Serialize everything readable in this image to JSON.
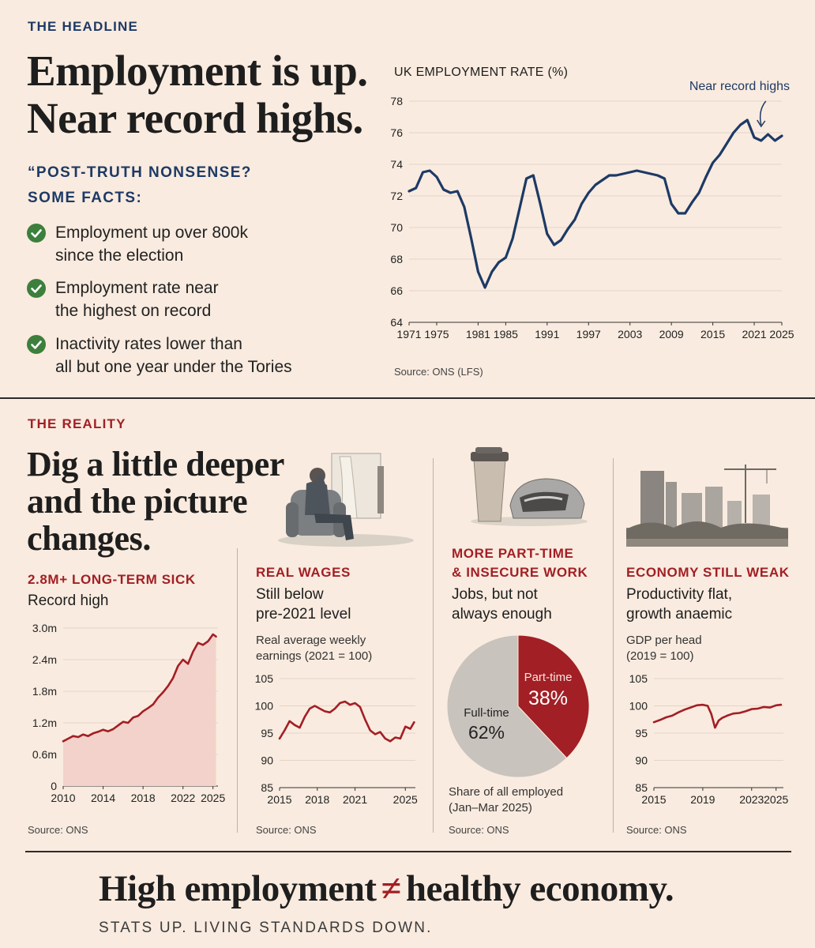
{
  "top": {
    "section_label": "THE HEADLINE",
    "headline_line1": "Employment is up.",
    "headline_line2": "Near record highs.",
    "question_line1": "“POST-TRUTH NONSENSE?",
    "question_line2": "SOME FACTS:",
    "facts": [
      {
        "line1": "Employment up over 800k",
        "line2": "since the election"
      },
      {
        "line1": "Employment rate near",
        "line2": "the highest on record"
      },
      {
        "line1": "Inactivity rates lower than",
        "line2": "all but one year under the Tories"
      }
    ]
  },
  "bottom": {
    "section_label": "THE REALITY",
    "headline_line1": "Dig a little deeper",
    "headline_line2": "and the picture",
    "headline_line3": "changes.",
    "panels": {
      "sick": {
        "title": "2.8M+ LONG-TERM SICK",
        "subtitle": "Record high",
        "source": "Source: ONS"
      },
      "wages": {
        "title": "REAL WAGES",
        "sub1": "Still below",
        "sub2": "pre-2021 level",
        "note1": "Real average weekly",
        "note2": "earnings (2021 = 100)",
        "source": "Source: ONS"
      },
      "parttime": {
        "title1": "MORE PART-TIME",
        "title2": "& INSECURE WORK",
        "sub1": "Jobs, but not",
        "sub2": "always enough",
        "note1": "Share of all employed",
        "note2": "(Jan–Mar 2025)",
        "source": "Source: ONS"
      },
      "economy": {
        "title": "ECONOMY STILL WEAK",
        "sub1": "Productivity flat,",
        "sub2": "growth anaemic",
        "note1": "GDP per head",
        "note2": "(2019 = 100)",
        "source": "Source: ONS"
      }
    }
  },
  "footer": {
    "left": "High employment",
    "symbol": "≠",
    "right": "healthy economy.",
    "tagline": "STATS UP. LIVING STANDARDS DOWN."
  },
  "colors": {
    "navy": "#1d3a66",
    "red": "#a21f25",
    "green": "#3d7f3c",
    "background": "#f9ebdf"
  },
  "chart_data": [
    {
      "id": "employment",
      "type": "line",
      "title": "UK EMPLOYMENT RATE (%)",
      "annotation": "Near record highs",
      "source": "Source: ONS (LFS)",
      "xlim": [
        1971,
        2025
      ],
      "ylim": [
        64,
        78
      ],
      "x_ticks": [
        1971,
        1975,
        1981,
        1985,
        1991,
        1997,
        2003,
        2009,
        2015,
        2021,
        2025
      ],
      "y_ticks": [
        64,
        66,
        68,
        70,
        72,
        74,
        76,
        78
      ],
      "color": "#1d3a66",
      "x": [
        1971,
        1972,
        1973,
        1974,
        1975,
        1976,
        1977,
        1978,
        1979,
        1980,
        1981,
        1982,
        1983,
        1984,
        1985,
        1986,
        1987,
        1988,
        1989,
        1990,
        1991,
        1992,
        1993,
        1994,
        1995,
        1996,
        1997,
        1998,
        1999,
        2000,
        2001,
        2002,
        2003,
        2004,
        2005,
        2006,
        2007,
        2008,
        2009,
        2010,
        2011,
        2012,
        2013,
        2014,
        2015,
        2016,
        2017,
        2018,
        2019,
        2020,
        2021,
        2022,
        2023,
        2024,
        2025
      ],
      "y": [
        72.3,
        72.5,
        73.5,
        73.6,
        73.2,
        72.4,
        72.2,
        72.3,
        71.3,
        69.3,
        67.2,
        66.2,
        67.2,
        67.8,
        68.1,
        69.3,
        71.2,
        73.1,
        73.3,
        71.5,
        69.6,
        68.9,
        69.2,
        69.9,
        70.5,
        71.5,
        72.2,
        72.7,
        73.0,
        73.3,
        73.3,
        73.4,
        73.5,
        73.6,
        73.5,
        73.4,
        73.3,
        73.1,
        71.5,
        70.9,
        70.9,
        71.6,
        72.2,
        73.2,
        74.1,
        74.6,
        75.3,
        76.0,
        76.5,
        76.8,
        75.7,
        75.5,
        75.9,
        75.5,
        75.8
      ]
    },
    {
      "id": "sick",
      "type": "area",
      "title": "2.8M+ LONG-TERM SICK",
      "source": "Source: ONS",
      "xlim": [
        2010,
        2025.5
      ],
      "ylim": [
        0,
        3.0
      ],
      "x_ticks": [
        2010,
        2014,
        2018,
        2022,
        2025
      ],
      "y_ticks": [
        0,
        0.6,
        1.2,
        1.8,
        2.4,
        3.0
      ],
      "y_tick_labels": [
        "0",
        "0.6m",
        "1.2m",
        "1.8m",
        "2.4m",
        "3.0m"
      ],
      "color": "#a21f25",
      "x": [
        2010,
        2010.5,
        2011,
        2011.5,
        2012,
        2012.5,
        2013,
        2013.5,
        2014,
        2014.5,
        2015,
        2015.5,
        2016,
        2016.5,
        2017,
        2017.5,
        2018,
        2018.5,
        2019,
        2019.5,
        2020,
        2020.5,
        2021,
        2021.5,
        2022,
        2022.5,
        2023,
        2023.5,
        2024,
        2024.5,
        2025,
        2025.3
      ],
      "y": [
        0.85,
        0.9,
        0.95,
        0.93,
        0.98,
        0.95,
        1.0,
        1.03,
        1.07,
        1.04,
        1.08,
        1.15,
        1.22,
        1.2,
        1.3,
        1.33,
        1.42,
        1.48,
        1.55,
        1.68,
        1.78,
        1.9,
        2.05,
        2.28,
        2.4,
        2.32,
        2.55,
        2.72,
        2.68,
        2.75,
        2.88,
        2.84
      ]
    },
    {
      "id": "wages",
      "type": "line",
      "title": "Real average weekly earnings (2021 = 100)",
      "source": "Source: ONS",
      "xlim": [
        2015,
        2025.8
      ],
      "ylim": [
        85,
        105
      ],
      "x_ticks": [
        2015,
        2018,
        2021,
        2025
      ],
      "y_ticks": [
        85,
        90,
        95,
        100,
        105
      ],
      "color": "#a21f25",
      "x": [
        2015,
        2015.4,
        2015.8,
        2016.2,
        2016.6,
        2017,
        2017.4,
        2017.8,
        2018.2,
        2018.6,
        2019,
        2019.4,
        2019.8,
        2020.2,
        2020.6,
        2021,
        2021.4,
        2021.8,
        2022.2,
        2022.6,
        2023,
        2023.4,
        2023.8,
        2024.2,
        2024.6,
        2025,
        2025.4,
        2025.7
      ],
      "y": [
        94,
        95.5,
        97.2,
        96.5,
        96,
        98,
        99.5,
        100,
        99.5,
        99,
        98.8,
        99.5,
        100.5,
        100.8,
        100.2,
        100.5,
        99.8,
        97.5,
        95.5,
        94.8,
        95.2,
        94,
        93.5,
        94.2,
        94,
        96.2,
        95.8,
        97
      ]
    },
    {
      "id": "parttime",
      "type": "pie",
      "title": "Share of all employed (Jan–Mar 2025)",
      "source": "Source: ONS",
      "labels": [
        "Part-time",
        "Full-time"
      ],
      "values": [
        38,
        62
      ],
      "value_labels": [
        "38%",
        "62%"
      ],
      "colors": [
        "#a21f25",
        "#c9c3bd"
      ]
    },
    {
      "id": "gdp",
      "type": "line",
      "title": "GDP per head (2019 = 100)",
      "source": "Source: ONS",
      "xlim": [
        2015,
        2025.6
      ],
      "ylim": [
        85,
        105
      ],
      "x_ticks": [
        2015,
        2019,
        2023,
        2025
      ],
      "y_ticks": [
        85,
        90,
        95,
        100,
        105
      ],
      "color": "#a21f25",
      "x": [
        2015,
        2015.5,
        2016,
        2016.5,
        2017,
        2017.5,
        2018,
        2018.5,
        2019,
        2019.4,
        2019.7,
        2020,
        2020.3,
        2020.6,
        2021,
        2021.5,
        2022,
        2022.5,
        2023,
        2023.5,
        2024,
        2024.5,
        2025,
        2025.4
      ],
      "y": [
        97,
        97.4,
        97.9,
        98.2,
        98.8,
        99.3,
        99.7,
        100.1,
        100.2,
        100,
        98.5,
        96,
        97.3,
        97.8,
        98.2,
        98.6,
        98.7,
        99,
        99.4,
        99.5,
        99.8,
        99.7,
        100.1,
        100.2
      ]
    }
  ]
}
